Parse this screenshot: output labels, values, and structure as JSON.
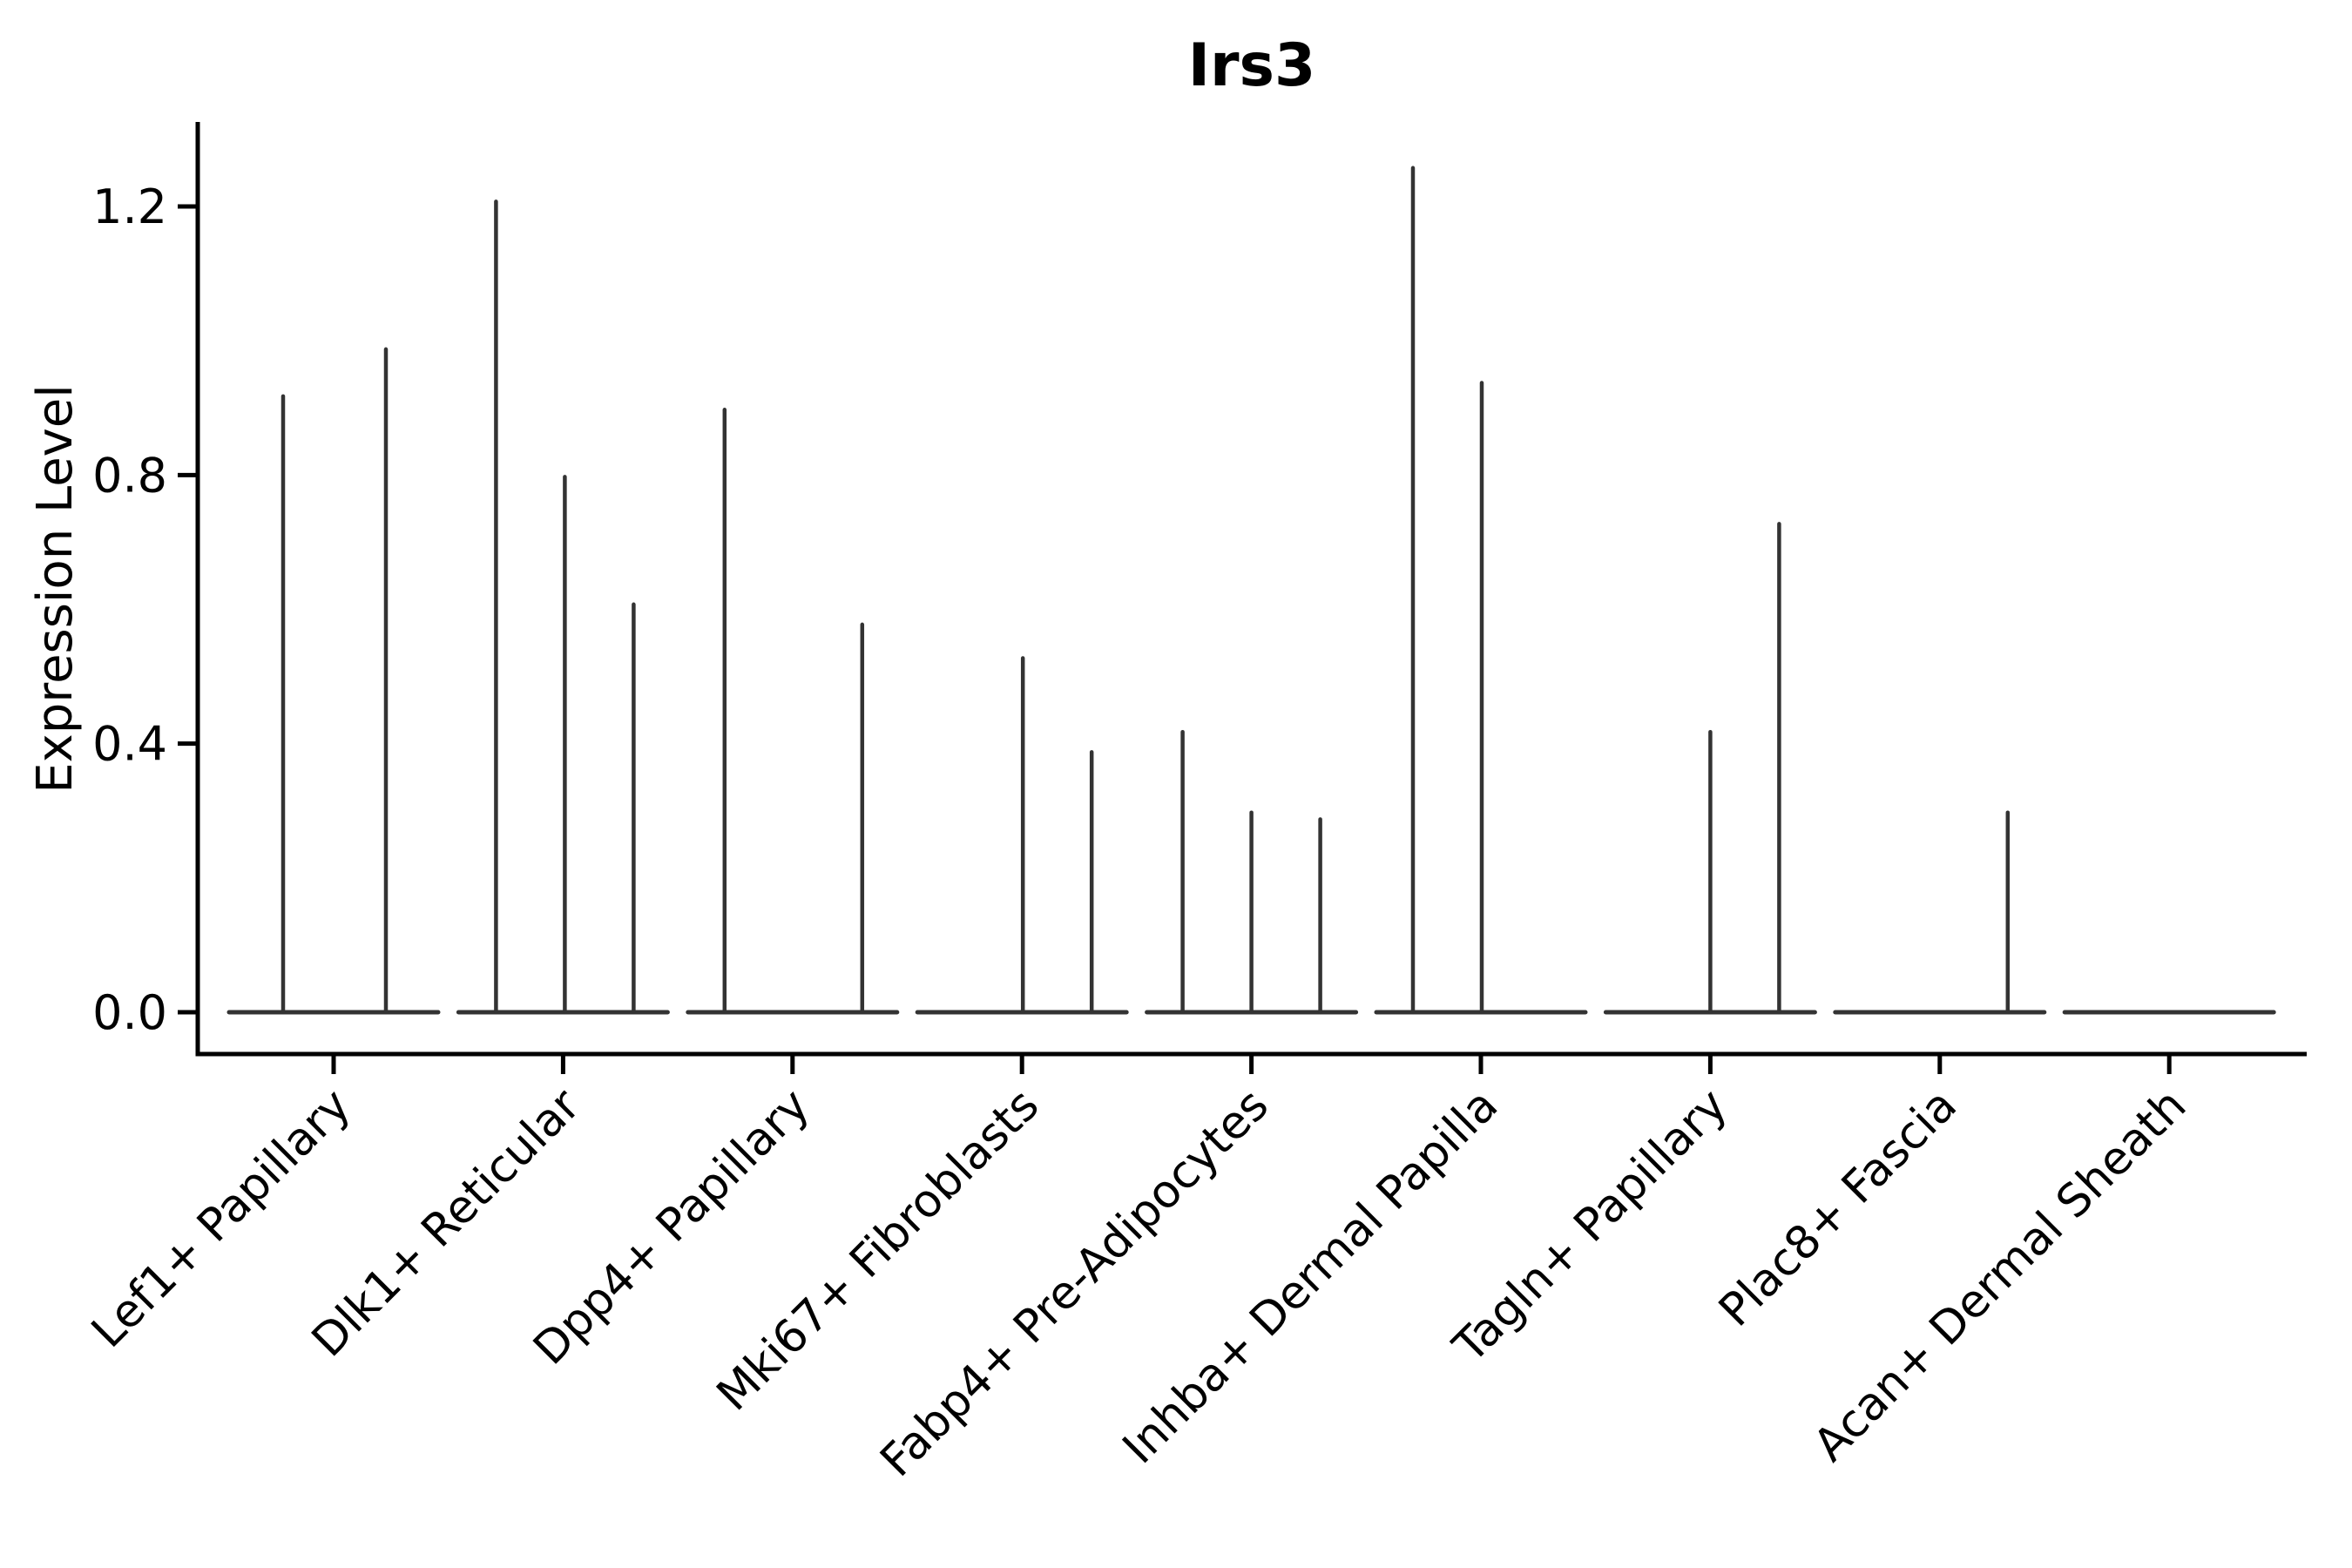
{
  "chart_data": {
    "type": "violin",
    "title": "Irs3",
    "xlabel": "",
    "ylabel": "Expression Level",
    "yticks": [
      0.0,
      0.4,
      0.8,
      1.2
    ],
    "ytick_labels": [
      "0.0",
      "0.4",
      "0.8",
      "1.2"
    ],
    "ylim": [
      -0.06,
      1.33
    ],
    "grid": false,
    "legend": "none",
    "description": "Violin plot of Irs3 expression per fibroblast subtype; violins are collapsed at 0 with thin density spikes reaching the maximum expressed values. Spike 'offset' gives the dodge position (px) of each violin within its category.",
    "categories": [
      "Lef1+ Papillary",
      "Dlk1+ Reticular",
      "Dpp4+ Papillary",
      "Mki67+ Fibroblasts",
      "Fabp4+ Pre-Adipocytes",
      "Inhba+ Dermal Papilla",
      "Tagln+ Papillary",
      "Plac8+ Fascia",
      "Acan+ Dermal Sheath"
    ],
    "groups": [
      {
        "category": "Lef1+ Papillary",
        "spikes": [
          {
            "value": 0.92,
            "offset": -58
          },
          {
            "value": 0.99,
            "offset": 60
          }
        ]
      },
      {
        "category": "Dlk1+ Reticular",
        "spikes": [
          {
            "value": 1.21,
            "offset": -77
          },
          {
            "value": 0.8,
            "offset": 2
          },
          {
            "value": 0.61,
            "offset": 81
          }
        ]
      },
      {
        "category": "Dpp4+ Papillary",
        "spikes": [
          {
            "value": 0.9,
            "offset": -78
          },
          {
            "value": 0.58,
            "offset": 80
          }
        ]
      },
      {
        "category": "Mki67+ Fibroblasts",
        "spikes": [
          {
            "value": 0.53,
            "offset": 1
          },
          {
            "value": 0.39,
            "offset": 80
          }
        ]
      },
      {
        "category": "Fabp4+ Pre-Adipocytes",
        "spikes": [
          {
            "value": 0.42,
            "offset": -79
          },
          {
            "value": 0.3,
            "offset": 0
          },
          {
            "value": 0.29,
            "offset": 79
          }
        ]
      },
      {
        "category": "Inhba+ Dermal Papilla",
        "spikes": [
          {
            "value": 1.26,
            "offset": -78
          },
          {
            "value": 0.94,
            "offset": 1
          }
        ]
      },
      {
        "category": "Tagln+ Papillary",
        "spikes": [
          {
            "value": 0.42,
            "offset": 0
          },
          {
            "value": 0.73,
            "offset": 79
          }
        ]
      },
      {
        "category": "Plac8+ Fascia",
        "spikes": [
          {
            "value": 0.3,
            "offset": 78
          }
        ]
      },
      {
        "category": "Acan+ Dermal Sheath",
        "spikes": []
      }
    ],
    "colors": {
      "background": "#ffffff",
      "spine": "#000000",
      "tick": "#000000",
      "text": "#000000",
      "violin": "#333333"
    }
  }
}
